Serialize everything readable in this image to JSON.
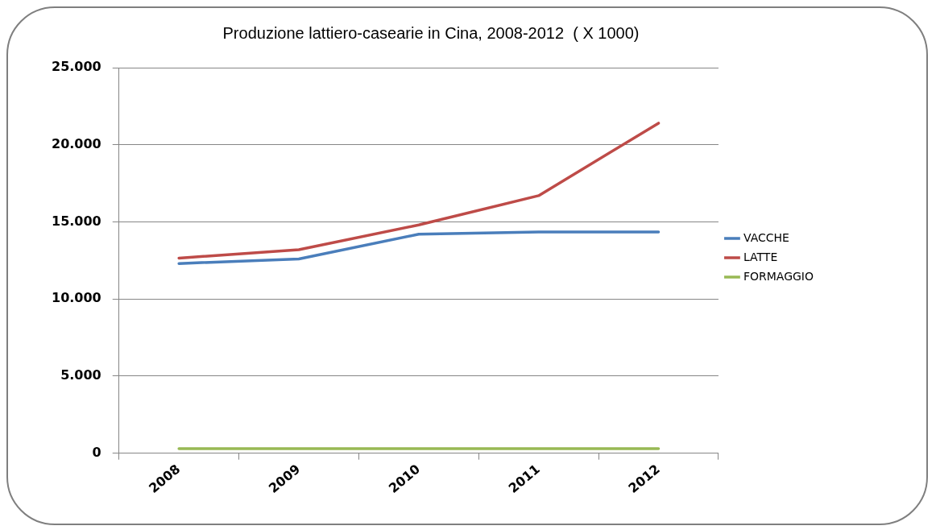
{
  "chart_data": {
    "type": "line",
    "title": "Produzione lattiero-casearie in Cina, 2008-2012  ( X 1000)",
    "categories": [
      "2008",
      "2009",
      "2010",
      "2011",
      "2012"
    ],
    "series": [
      {
        "name": "VACCHE",
        "color": "#4a7ebb",
        "values": [
          12300,
          12600,
          14200,
          14350,
          14350
        ]
      },
      {
        "name": "LATTE",
        "color": "#be4b48",
        "values": [
          12650,
          13200,
          14800,
          16700,
          21400
        ]
      },
      {
        "name": "FORMAGGIO",
        "color": "#98b954",
        "values": [
          300,
          300,
          300,
          300,
          300
        ]
      }
    ],
    "ylim": [
      0,
      25000
    ],
    "yticks": [
      {
        "value": 0,
        "label": "0"
      },
      {
        "value": 5000,
        "label": "5.000"
      },
      {
        "value": 10000,
        "label": "10.000"
      },
      {
        "value": 15000,
        "label": "15.000"
      },
      {
        "value": 20000,
        "label": "20.000"
      },
      {
        "value": 25000,
        "label": "25.000"
      }
    ],
    "grid": "y",
    "legend": "right",
    "marker": "none",
    "line_style": "solid"
  }
}
